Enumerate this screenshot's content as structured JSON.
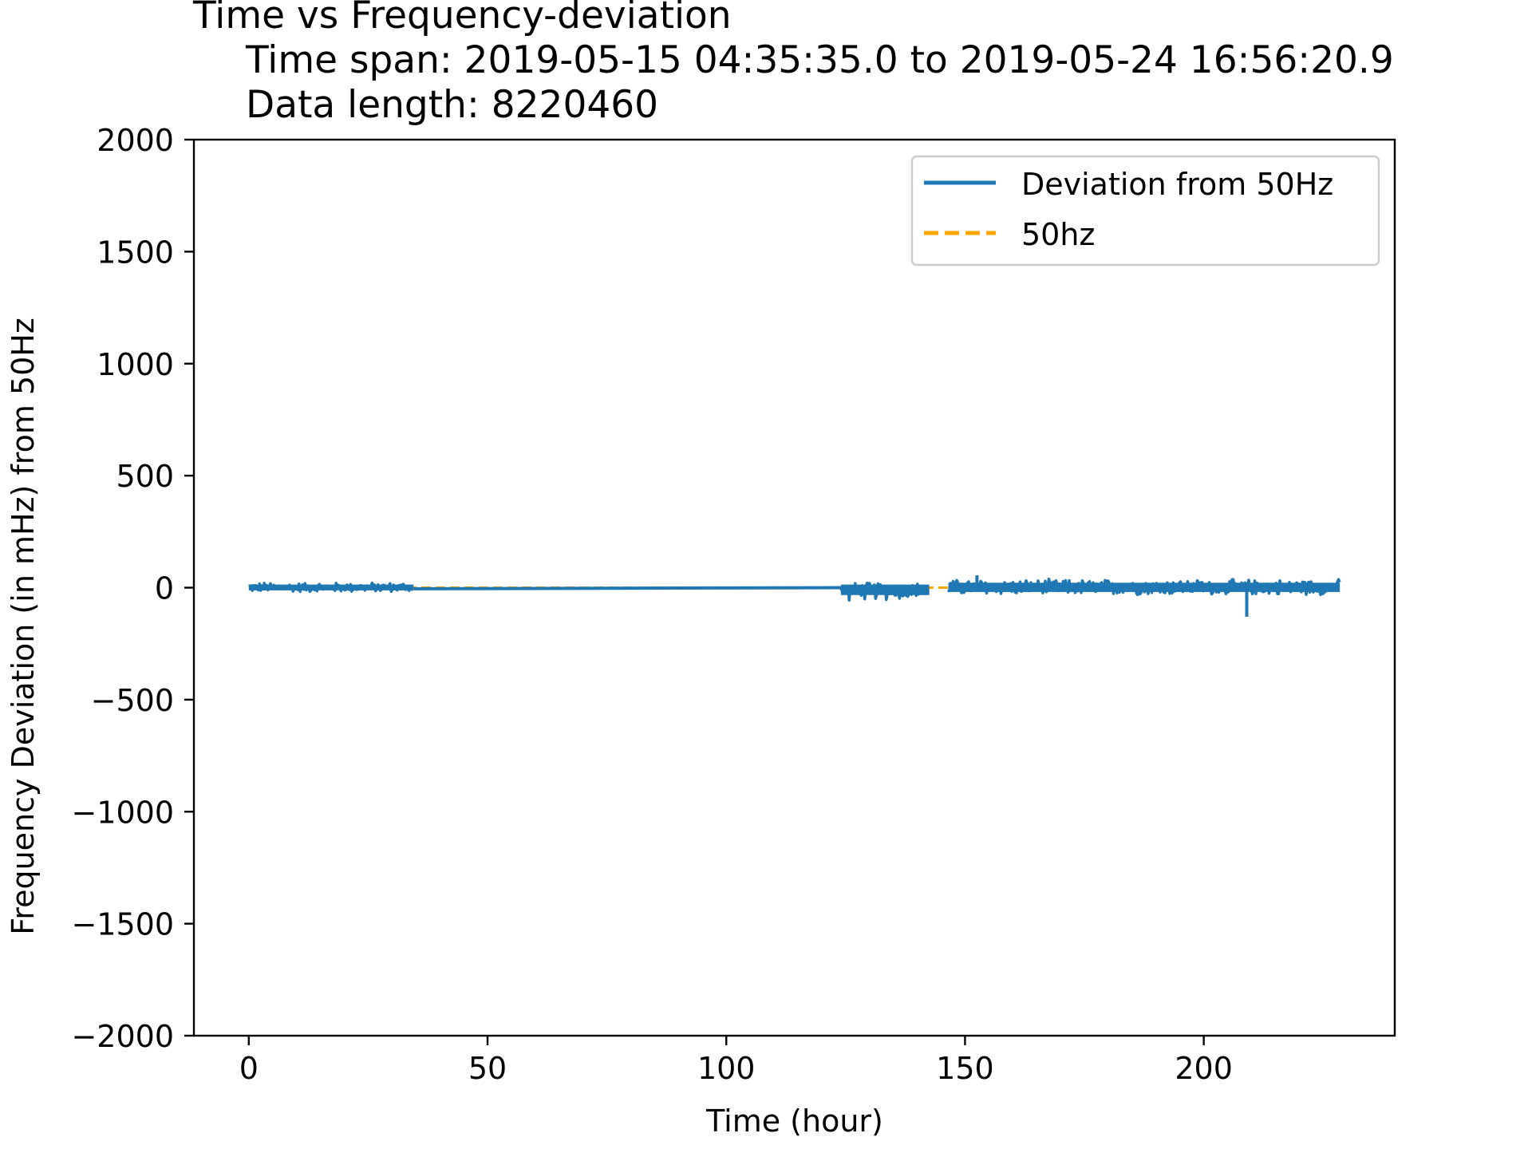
{
  "chart_data": {
    "type": "line",
    "title": "Time vs Frequency-deviation",
    "subtitle_lines": [
      "Time span: 2019-05-15 04:35:35.0 to 2019-05-24 16:56:20.9",
      "Data length: 8220460"
    ],
    "xlabel": "Time (hour)",
    "ylabel": "Frequency Deviation (in mHz) from 50Hz",
    "xlim": [
      -11.5,
      240
    ],
    "ylim": [
      -2000,
      2000
    ],
    "xticks": [
      0,
      50,
      100,
      150,
      200
    ],
    "xtick_labels": [
      "0",
      "50",
      "100",
      "150",
      "200"
    ],
    "yticks": [
      -2000,
      -1500,
      -1000,
      -500,
      0,
      500,
      1000,
      1500,
      2000
    ],
    "ytick_labels": [
      "−2000",
      "−1500",
      "−1000",
      "−500",
      "0",
      "500",
      "1000",
      "1500",
      "2000"
    ],
    "grid": false,
    "legend_position": "top-right",
    "series": [
      {
        "name": "Deviation from 50Hz",
        "color": "#1f77b4",
        "style": "solid",
        "segments": [
          {
            "x_start": 0,
            "x_end": 34.5,
            "y_min": -22,
            "y_max": 25,
            "kind": "noise"
          },
          {
            "x": [
              34.5,
              124
            ],
            "y": [
              -5,
              0
            ],
            "kind": "line"
          },
          {
            "x_start": 124,
            "x_end": 142.5,
            "y_min": -60,
            "y_max": 25,
            "kind": "noise"
          },
          {
            "x_start": 146.5,
            "x_end": 228.5,
            "y_min": -35,
            "y_max": 40,
            "kind": "noise"
          }
        ],
        "spikes": [
          {
            "x": 209,
            "y": -130
          },
          {
            "x": 152.5,
            "y": 55
          }
        ]
      },
      {
        "name": "50hz",
        "color": "#ffa500",
        "style": "dashed",
        "x": [
          0,
          228.5
        ],
        "y": [
          0,
          0
        ]
      }
    ]
  }
}
